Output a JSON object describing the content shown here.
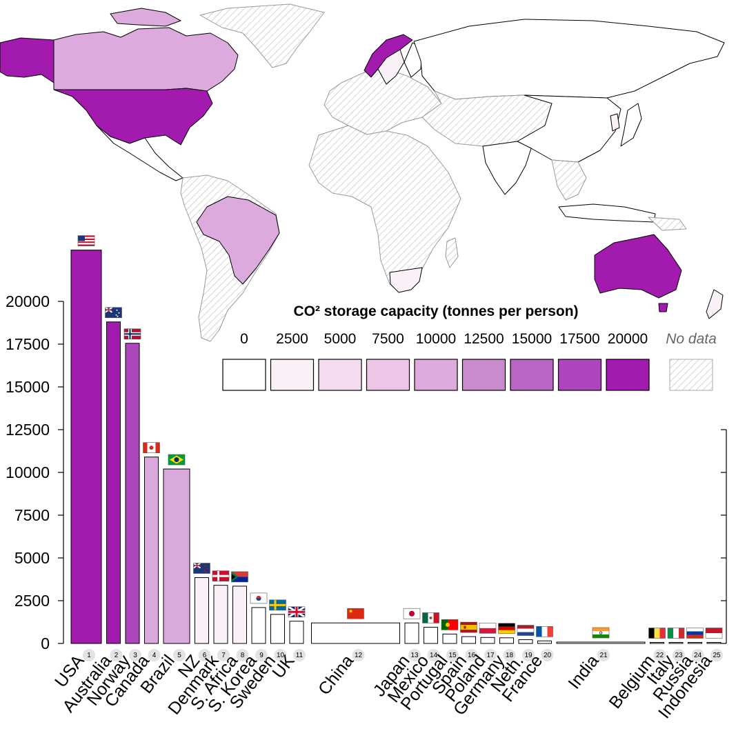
{
  "chart_data": {
    "type": "bar",
    "categories": [
      "USA",
      "Australia",
      "Norway",
      "Canada",
      "Brazil",
      "NZ",
      "Denmark",
      "S. Africa",
      "S. Korea",
      "Sweden",
      "UK",
      "China",
      "Japan",
      "Mexico",
      "Portugal",
      "Spain",
      "Poland",
      "Germany",
      "Neth.",
      "France",
      "India",
      "Belgium",
      "Italy",
      "Russia",
      "Indonesia"
    ],
    "ranks": [
      "1",
      "2",
      "3",
      "4",
      "5",
      "6",
      "7",
      "8",
      "9",
      "10",
      "11",
      "12",
      "13",
      "14",
      "15",
      "16",
      "17",
      "18",
      "19",
      "20",
      "21",
      "22",
      "23",
      "24",
      "25"
    ],
    "values": [
      23000,
      18800,
      17550,
      10900,
      10200,
      3850,
      3400,
      3350,
      2100,
      1700,
      1300,
      1200,
      1200,
      950,
      550,
      400,
      350,
      330,
      220,
      150,
      80,
      60,
      50,
      50,
      40
    ],
    "relative_widths": [
      1,
      1,
      1,
      1,
      2,
      1,
      1,
      1,
      1,
      1,
      1,
      5,
      1,
      1,
      1,
      1,
      1,
      1,
      1,
      1,
      5,
      1,
      1,
      1,
      1
    ],
    "ylim": [
      0,
      25000
    ],
    "yticks": [
      "0",
      "2500",
      "5000",
      "7500",
      "10000",
      "12500",
      "15000",
      "17500",
      "20000"
    ],
    "flags": [
      "us",
      "au",
      "no",
      "ca",
      "br",
      "nz",
      "dk",
      "za",
      "kr",
      "se",
      "gb",
      "cn",
      "jp",
      "mx",
      "pt",
      "es",
      "pl",
      "de",
      "nl",
      "fr",
      "in",
      "be",
      "it",
      "ru",
      "id"
    ],
    "legend": {
      "title": "CO² storage capacity (tonnes per person)",
      "labels": [
        "0",
        "2500",
        "5000",
        "7500",
        "10000",
        "12500",
        "15000",
        "17500",
        "20000"
      ],
      "colors": [
        "#ffffff",
        "#faf0f8",
        "#f3dcf0",
        "#ebc6e7",
        "#dcaadc",
        "#c98ad0",
        "#b865c4",
        "#ad45bd",
        "#a31aaf"
      ],
      "nodata_label": "No data"
    },
    "colors": {
      "bar_high": "#a31aaf",
      "bar_mid": "#ad45bd",
      "bar_light": "#d9a8dc",
      "bar_pale": "#faf0f8",
      "bar_white": "#ffffff",
      "map_land": "#ffffff",
      "hatch": "#bdbdbd"
    },
    "grid": false,
    "legend_position": "right"
  }
}
